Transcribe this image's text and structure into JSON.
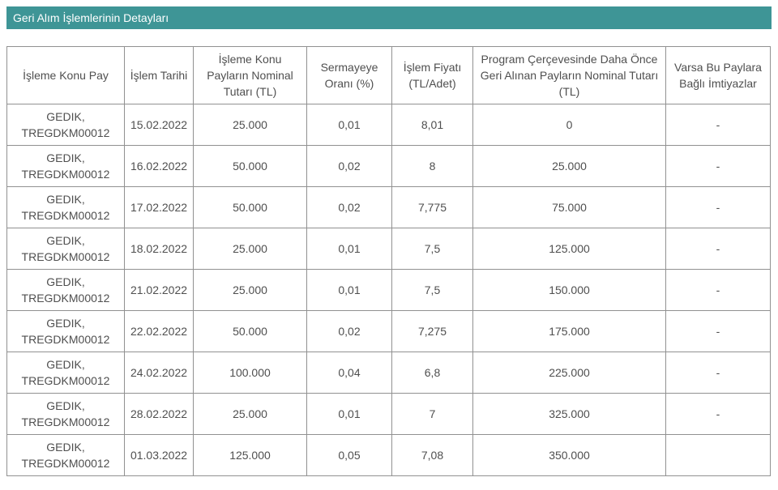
{
  "accent_color": "#3e9596",
  "border_color": "#919191",
  "text_color": "#4f4f4f",
  "panel": {
    "title": "Geri Alım İşlemlerinin Detayları"
  },
  "table": {
    "headers": [
      "İşleme Konu Pay",
      "İşlem Tarihi",
      "İşleme Konu Payların Nominal Tutarı (TL)",
      "Sermayeye Oranı (%)",
      "İşlem Fiyatı (TL/Adet)",
      "Program Çerçevesinde Daha Önce Geri Alınan Payların Nominal Tutarı (TL)",
      "Varsa Bu Paylara Bağlı İmtiyazlar"
    ],
    "rows": [
      [
        "GEDIK, TREGDKM00012",
        "15.02.2022",
        "25.000",
        "0,01",
        "8,01",
        "0",
        "-"
      ],
      [
        "GEDIK, TREGDKM00012",
        "16.02.2022",
        "50.000",
        "0,02",
        "8",
        "25.000",
        "-"
      ],
      [
        "GEDIK, TREGDKM00012",
        "17.02.2022",
        "50.000",
        "0,02",
        "7,775",
        "75.000",
        "-"
      ],
      [
        "GEDIK, TREGDKM00012",
        "18.02.2022",
        "25.000",
        "0,01",
        "7,5",
        "125.000",
        "-"
      ],
      [
        "GEDIK, TREGDKM00012",
        "21.02.2022",
        "25.000",
        "0,01",
        "7,5",
        "150.000",
        "-"
      ],
      [
        "GEDIK, TREGDKM00012",
        "22.02.2022",
        "50.000",
        "0,02",
        "7,275",
        "175.000",
        "-"
      ],
      [
        "GEDIK, TREGDKM00012",
        "24.02.2022",
        "100.000",
        "0,04",
        "6,8",
        "225.000",
        "-"
      ],
      [
        "GEDIK, TREGDKM00012",
        "28.02.2022",
        "25.000",
        "0,01",
        "7",
        "325.000",
        "-"
      ],
      [
        "GEDIK, TREGDKM00012",
        "01.03.2022",
        "125.000",
        "0,05",
        "7,08",
        "350.000",
        ""
      ]
    ]
  }
}
